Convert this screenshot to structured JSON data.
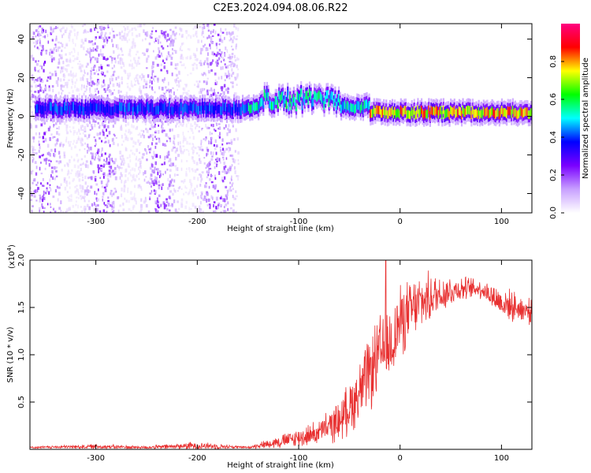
{
  "title": "C2E3.2024.094.08.06.R22",
  "chart_data": [
    {
      "type": "heatmap",
      "xlabel": "Height of straight line (km)",
      "ylabel": "Frequency (Hz)",
      "xlim": [
        -365,
        130
      ],
      "ylim": [
        -50,
        48
      ],
      "xticks": [
        -300,
        -200,
        -100,
        0,
        100
      ],
      "yticks": [
        -40,
        -20,
        0,
        20,
        40
      ],
      "colorbar": {
        "label": "Normalized spectral amplitude",
        "range": [
          0.0,
          1.0
        ],
        "ticks": [
          "0.0",
          "0.2",
          "0.4",
          "0.6",
          "0.8"
        ],
        "colors": [
          "#ffffff",
          "#c8a0ff",
          "#7a00ff",
          "#0000ff",
          "#00ffff",
          "#00ff00",
          "#ffff00",
          "#ff0000",
          "#ff0080"
        ]
      },
      "band": {
        "description": "narrow tone near 0-5 Hz",
        "segments": [
          {
            "x": [
              -360,
              -150
            ],
            "freq_center": 4,
            "amplitude": 0.45
          },
          {
            "x": [
              -150,
              -30
            ],
            "freq_center": 5,
            "amplitude": 0.6
          },
          {
            "x": [
              -30,
              130
            ],
            "freq_center": 2,
            "amplitude": 0.9
          }
        ]
      },
      "noise_region_x": [
        -365,
        -160
      ]
    },
    {
      "type": "line",
      "xlabel": "Height of straight line (km)",
      "ylabel": "SNR (10 * v/v)",
      "y_multiplier_label": "(x10",
      "y_multiplier_exp": "4",
      "y_multiplier_close": ")",
      "xlim": [
        -365,
        130
      ],
      "ylim": [
        0,
        2.0
      ],
      "xticks": [
        -300,
        -200,
        -100,
        0,
        100
      ],
      "yticks": [
        "0.5",
        "1.0",
        "1.5",
        "2.0"
      ],
      "color": "#e83030",
      "envelope": {
        "x": [
          -365,
          -300,
          -250,
          -200,
          -150,
          -120,
          -100,
          -80,
          -60,
          -40,
          -20,
          -10,
          0,
          20,
          40,
          60,
          80,
          100,
          130
        ],
        "mean": [
          0.02,
          0.03,
          0.02,
          0.04,
          0.02,
          0.08,
          0.12,
          0.18,
          0.3,
          0.6,
          1.0,
          1.1,
          1.35,
          1.55,
          1.65,
          1.7,
          1.7,
          1.55,
          1.45
        ],
        "spread": [
          0.01,
          0.03,
          0.02,
          0.05,
          0.01,
          0.08,
          0.12,
          0.15,
          0.25,
          0.4,
          0.5,
          0.5,
          0.45,
          0.35,
          0.25,
          0.15,
          0.12,
          0.2,
          0.15
        ]
      },
      "peak": {
        "x": -14,
        "y": 2.0
      }
    }
  ]
}
